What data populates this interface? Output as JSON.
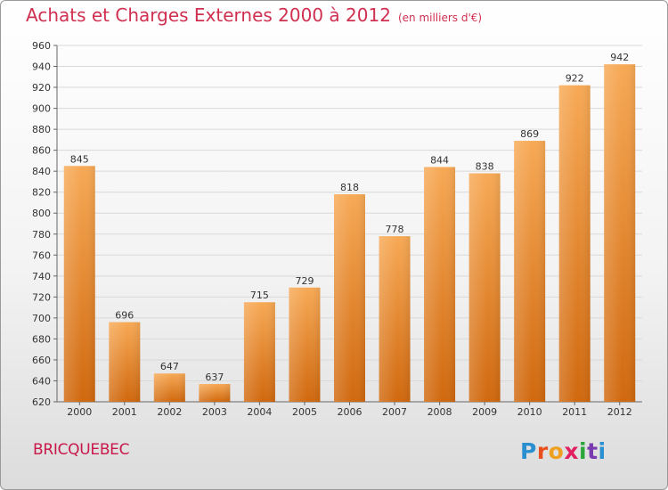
{
  "title": "Achats et Charges Externes 2000 à 2012",
  "subtitle": "(en milliers d'€)",
  "city": "BRICQUEBEC",
  "logo": "Proxiti",
  "chart_data": {
    "type": "bar",
    "title": "Achats et Charges Externes 2000 à 2012",
    "subtitle": "(en milliers d'€)",
    "categories": [
      "2000",
      "2001",
      "2002",
      "2003",
      "2004",
      "2005",
      "2006",
      "2007",
      "2008",
      "2009",
      "2010",
      "2011",
      "2012"
    ],
    "values": [
      845,
      696,
      647,
      637,
      715,
      729,
      818,
      778,
      844,
      838,
      869,
      922,
      942
    ],
    "ylim": [
      620,
      960
    ],
    "yticks": [
      620,
      640,
      660,
      680,
      700,
      720,
      740,
      760,
      780,
      800,
      820,
      840,
      860,
      880,
      900,
      920,
      940,
      960
    ],
    "grid": true,
    "bar_color": "#f0953a"
  }
}
